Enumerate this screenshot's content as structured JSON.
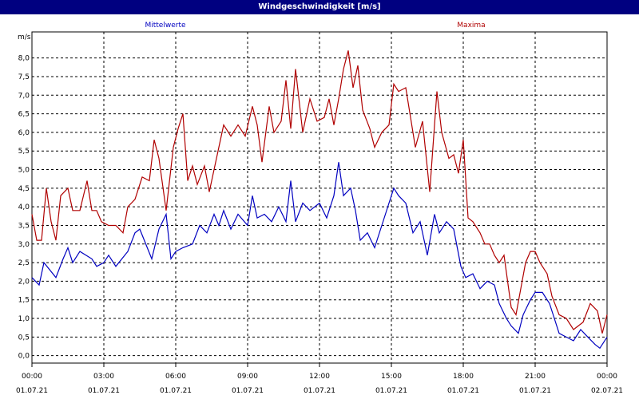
{
  "window": {
    "title": "Windgeschwindigkeit [m/s]"
  },
  "chart_data": {
    "type": "line",
    "ylabel": "m/s",
    "ylim": [
      -0.2,
      8.7
    ],
    "y_ticks": [
      "0,0",
      "0,5",
      "1,0",
      "1,5",
      "2,0",
      "2,5",
      "3,0",
      "3,5",
      "4,0",
      "4,5",
      "5,0",
      "5,5",
      "6,0",
      "6,5",
      "7,0",
      "7,5",
      "8,0"
    ],
    "x_range_hours": [
      0,
      24
    ],
    "x_ticks": [
      {
        "time": "00:00",
        "date": "01.07.21"
      },
      {
        "time": "03:00",
        "date": "01.07.21"
      },
      {
        "time": "06:00",
        "date": "01.07.21"
      },
      {
        "time": "09:00",
        "date": "01.07.21"
      },
      {
        "time": "12:00",
        "date": "01.07.21"
      },
      {
        "time": "15:00",
        "date": "01.07.21"
      },
      {
        "time": "18:00",
        "date": "01.07.21"
      },
      {
        "time": "21:00",
        "date": "01.07.21"
      },
      {
        "time": "00:00",
        "date": "02.07.21"
      }
    ],
    "grid": true,
    "series": [
      {
        "name": "Mittelwerte",
        "color": "#0000c0",
        "points": [
          [
            0,
            2.1
          ],
          [
            0.3,
            1.9
          ],
          [
            0.5,
            2.5
          ],
          [
            1.0,
            2.1
          ],
          [
            1.3,
            2.6
          ],
          [
            1.5,
            2.9
          ],
          [
            1.7,
            2.5
          ],
          [
            2.0,
            2.8
          ],
          [
            2.5,
            2.6
          ],
          [
            2.7,
            2.4
          ],
          [
            3.0,
            2.5
          ],
          [
            3.2,
            2.7
          ],
          [
            3.5,
            2.4
          ],
          [
            4.0,
            2.8
          ],
          [
            4.3,
            3.3
          ],
          [
            4.5,
            3.4
          ],
          [
            5.0,
            2.6
          ],
          [
            5.3,
            3.4
          ],
          [
            5.6,
            3.8
          ],
          [
            5.8,
            2.6
          ],
          [
            6.0,
            2.8
          ],
          [
            6.3,
            2.9
          ],
          [
            6.7,
            3.0
          ],
          [
            7.0,
            3.5
          ],
          [
            7.3,
            3.3
          ],
          [
            7.6,
            3.8
          ],
          [
            7.8,
            3.5
          ],
          [
            8.0,
            3.9
          ],
          [
            8.3,
            3.4
          ],
          [
            8.6,
            3.8
          ],
          [
            9.0,
            3.5
          ],
          [
            9.2,
            4.3
          ],
          [
            9.4,
            3.7
          ],
          [
            9.7,
            3.8
          ],
          [
            10.0,
            3.6
          ],
          [
            10.3,
            4.0
          ],
          [
            10.6,
            3.6
          ],
          [
            10.8,
            4.7
          ],
          [
            11.0,
            3.6
          ],
          [
            11.3,
            4.1
          ],
          [
            11.6,
            3.9
          ],
          [
            12.0,
            4.1
          ],
          [
            12.3,
            3.7
          ],
          [
            12.6,
            4.3
          ],
          [
            12.8,
            5.2
          ],
          [
            13.0,
            4.3
          ],
          [
            13.3,
            4.5
          ],
          [
            13.5,
            3.9
          ],
          [
            13.7,
            3.1
          ],
          [
            14.0,
            3.3
          ],
          [
            14.3,
            2.9
          ],
          [
            14.6,
            3.5
          ],
          [
            14.9,
            4.1
          ],
          [
            15.1,
            4.5
          ],
          [
            15.3,
            4.3
          ],
          [
            15.6,
            4.1
          ],
          [
            15.9,
            3.3
          ],
          [
            16.2,
            3.6
          ],
          [
            16.5,
            2.7
          ],
          [
            16.8,
            3.8
          ],
          [
            17.0,
            3.3
          ],
          [
            17.3,
            3.6
          ],
          [
            17.6,
            3.4
          ],
          [
            17.9,
            2.4
          ],
          [
            18.1,
            2.1
          ],
          [
            18.4,
            2.2
          ],
          [
            18.7,
            1.8
          ],
          [
            19.0,
            2.0
          ],
          [
            19.3,
            1.9
          ],
          [
            19.5,
            1.4
          ],
          [
            19.8,
            1.0
          ],
          [
            20.0,
            0.8
          ],
          [
            20.3,
            0.6
          ],
          [
            20.5,
            1.1
          ],
          [
            20.8,
            1.5
          ],
          [
            21.0,
            1.7
          ],
          [
            21.3,
            1.7
          ],
          [
            21.6,
            1.4
          ],
          [
            21.8,
            1.0
          ],
          [
            22.0,
            0.6
          ],
          [
            22.3,
            0.5
          ],
          [
            22.6,
            0.4
          ],
          [
            22.9,
            0.7
          ],
          [
            23.2,
            0.5
          ],
          [
            23.5,
            0.3
          ],
          [
            23.7,
            0.2
          ],
          [
            24.0,
            0.5
          ]
        ]
      },
      {
        "name": "Maxima",
        "color": "#b00000",
        "points": [
          [
            0,
            3.8
          ],
          [
            0.2,
            3.1
          ],
          [
            0.4,
            3.1
          ],
          [
            0.6,
            4.5
          ],
          [
            0.8,
            3.6
          ],
          [
            1.0,
            3.1
          ],
          [
            1.2,
            4.3
          ],
          [
            1.5,
            4.5
          ],
          [
            1.7,
            3.9
          ],
          [
            2.0,
            3.9
          ],
          [
            2.3,
            4.7
          ],
          [
            2.5,
            3.9
          ],
          [
            2.7,
            3.9
          ],
          [
            2.9,
            3.6
          ],
          [
            3.2,
            3.5
          ],
          [
            3.5,
            3.5
          ],
          [
            3.8,
            3.3
          ],
          [
            4.0,
            4.0
          ],
          [
            4.3,
            4.2
          ],
          [
            4.6,
            4.8
          ],
          [
            4.9,
            4.7
          ],
          [
            5.1,
            5.8
          ],
          [
            5.3,
            5.3
          ],
          [
            5.6,
            3.9
          ],
          [
            5.9,
            5.6
          ],
          [
            6.1,
            6.1
          ],
          [
            6.3,
            6.5
          ],
          [
            6.5,
            4.7
          ],
          [
            6.7,
            5.1
          ],
          [
            6.9,
            4.6
          ],
          [
            7.2,
            5.1
          ],
          [
            7.4,
            4.4
          ],
          [
            7.7,
            5.3
          ],
          [
            8.0,
            6.2
          ],
          [
            8.3,
            5.9
          ],
          [
            8.6,
            6.2
          ],
          [
            8.9,
            5.9
          ],
          [
            9.2,
            6.7
          ],
          [
            9.4,
            6.2
          ],
          [
            9.6,
            5.2
          ],
          [
            9.9,
            6.7
          ],
          [
            10.1,
            6.0
          ],
          [
            10.4,
            6.3
          ],
          [
            10.6,
            7.4
          ],
          [
            10.8,
            6.1
          ],
          [
            11.0,
            7.7
          ],
          [
            11.3,
            6.0
          ],
          [
            11.6,
            6.9
          ],
          [
            11.9,
            6.3
          ],
          [
            12.2,
            6.4
          ],
          [
            12.4,
            6.9
          ],
          [
            12.6,
            6.2
          ],
          [
            12.8,
            6.9
          ],
          [
            13.0,
            7.7
          ],
          [
            13.2,
            8.2
          ],
          [
            13.4,
            7.2
          ],
          [
            13.6,
            7.8
          ],
          [
            13.8,
            6.6
          ],
          [
            14.1,
            6.1
          ],
          [
            14.3,
            5.6
          ],
          [
            14.6,
            6.0
          ],
          [
            14.9,
            6.2
          ],
          [
            15.1,
            7.3
          ],
          [
            15.3,
            7.1
          ],
          [
            15.6,
            7.2
          ],
          [
            15.8,
            6.4
          ],
          [
            16.0,
            5.6
          ],
          [
            16.3,
            6.3
          ],
          [
            16.6,
            4.4
          ],
          [
            16.9,
            7.1
          ],
          [
            17.1,
            6.0
          ],
          [
            17.4,
            5.3
          ],
          [
            17.6,
            5.4
          ],
          [
            17.8,
            4.9
          ],
          [
            18.0,
            5.8
          ],
          [
            18.2,
            3.7
          ],
          [
            18.4,
            3.6
          ],
          [
            18.7,
            3.3
          ],
          [
            18.9,
            3.0
          ],
          [
            19.1,
            3.0
          ],
          [
            19.3,
            2.7
          ],
          [
            19.5,
            2.5
          ],
          [
            19.7,
            2.7
          ],
          [
            20.0,
            1.3
          ],
          [
            20.2,
            1.1
          ],
          [
            20.4,
            1.8
          ],
          [
            20.6,
            2.5
          ],
          [
            20.8,
            2.8
          ],
          [
            21.0,
            2.8
          ],
          [
            21.2,
            2.5
          ],
          [
            21.5,
            2.2
          ],
          [
            21.7,
            1.6
          ],
          [
            22.0,
            1.1
          ],
          [
            22.3,
            1.0
          ],
          [
            22.6,
            0.7
          ],
          [
            23.0,
            0.9
          ],
          [
            23.3,
            1.4
          ],
          [
            23.6,
            1.2
          ],
          [
            23.8,
            0.6
          ],
          [
            24.0,
            1.1
          ]
        ]
      }
    ]
  }
}
